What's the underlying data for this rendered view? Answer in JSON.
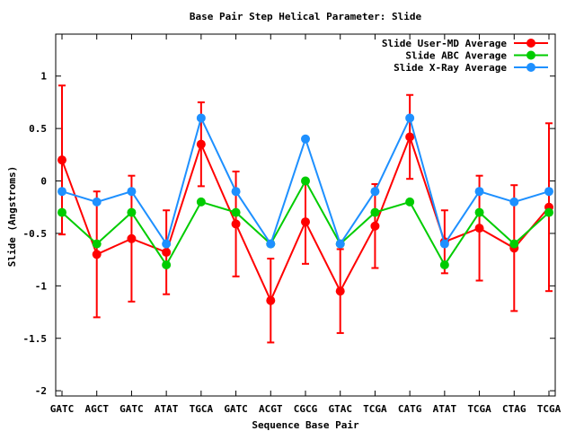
{
  "chart_data": {
    "type": "line",
    "title": "Base Pair Step Helical Parameter: Slide",
    "xlabel": "Sequence Base Pair",
    "ylabel": "Slide (Angstroms)",
    "ylim": [
      -2.05,
      1.4
    ],
    "yticks": [
      1,
      0.5,
      0,
      -0.5,
      -1,
      -1.5,
      -2
    ],
    "ytick_labels": [
      "1",
      "0.5",
      "0",
      "-0.5",
      "-1",
      "-1.5",
      "-2"
    ],
    "grid": false,
    "legend_position": "top-right",
    "categories": [
      "GATC",
      "AGCT",
      "GATC",
      "ATAT",
      "TGCA",
      "GATC",
      "ACGT",
      "CGCG",
      "GTAC",
      "TCGA",
      "CATG",
      "ATAT",
      "TCGA",
      "CTAG",
      "TCGA"
    ],
    "series": [
      {
        "name": "Slide User-MD Average",
        "color": "#ff0000",
        "values": [
          0.2,
          -0.7,
          -0.55,
          -0.68,
          0.35,
          -0.41,
          -1.14,
          -0.39,
          -1.05,
          -0.43,
          0.42,
          -0.58,
          -0.45,
          -0.64,
          -0.25
        ],
        "error": [
          0.71,
          0.6,
          0.6,
          0.4,
          0.4,
          0.5,
          0.4,
          0.4,
          0.4,
          0.4,
          0.4,
          0.3,
          0.5,
          0.6,
          0.8
        ]
      },
      {
        "name": "Slide ABC Average",
        "color": "#00cc00",
        "values": [
          -0.3,
          -0.6,
          -0.3,
          -0.8,
          -0.2,
          -0.3,
          -0.6,
          0.0,
          -0.6,
          -0.3,
          -0.2,
          -0.8,
          -0.3,
          -0.6,
          -0.3
        ]
      },
      {
        "name": "Slide X-Ray Average",
        "color": "#1e90ff",
        "values": [
          -0.1,
          -0.2,
          -0.1,
          -0.6,
          0.6,
          -0.1,
          -0.6,
          0.4,
          -0.6,
          -0.1,
          0.6,
          -0.6,
          -0.1,
          -0.2,
          -0.1
        ]
      }
    ]
  }
}
